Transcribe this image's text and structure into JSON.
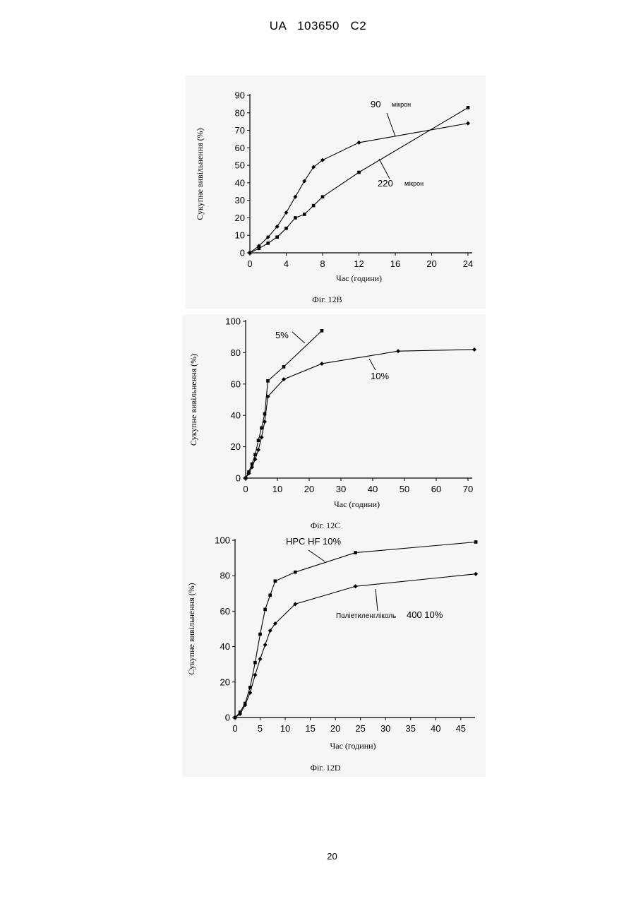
{
  "header": {
    "text": "UA   103650   C2"
  },
  "page_number": "20",
  "chart_data": [
    {
      "type": "line",
      "caption": "Фіг. 12В",
      "xlabel": "Час (години)",
      "ylabel": "Сукупне вивільнення (%)",
      "xlim": [
        0,
        24
      ],
      "ylim": [
        0,
        90
      ],
      "xticks": [
        0,
        4,
        8,
        12,
        16,
        20,
        24
      ],
      "yticks": [
        0,
        10,
        20,
        30,
        40,
        50,
        60,
        70,
        80,
        90
      ],
      "grid": false,
      "series": [
        {
          "name": "90 мікрон",
          "marker": "diamond",
          "x": [
            0,
            1,
            2,
            3,
            4,
            5,
            6,
            7,
            8,
            12,
            24
          ],
          "y": [
            0,
            4,
            9,
            15,
            23,
            32,
            41,
            49,
            53,
            63,
            74
          ]
        },
        {
          "name": "220 мікрон",
          "marker": "square",
          "x": [
            0,
            1,
            2,
            3,
            4,
            5,
            6,
            7,
            8,
            12,
            24
          ],
          "y": [
            0,
            2.5,
            5.5,
            9,
            14,
            20,
            22,
            27,
            32,
            46,
            83
          ]
        }
      ],
      "annotations": [
        {
          "label": "90",
          "unit": "мікрон",
          "series": 0
        },
        {
          "label": "220",
          "unit": "мікрон",
          "series": 1
        }
      ]
    },
    {
      "type": "line",
      "caption": "Фіг. 12С",
      "xlabel": "Час (години)",
      "ylabel": "Сукупне вивільнення (%)",
      "xlim": [
        0,
        70
      ],
      "ylim": [
        0,
        100
      ],
      "xticks": [
        0,
        10,
        20,
        30,
        40,
        50,
        60,
        70
      ],
      "yticks": [
        0,
        20,
        40,
        60,
        80,
        100
      ],
      "grid": false,
      "series": [
        {
          "name": "5%",
          "marker": "square",
          "x": [
            0,
            1,
            2,
            3,
            4,
            5,
            6,
            7,
            12,
            24
          ],
          "y": [
            0,
            4,
            9,
            15,
            24,
            32,
            41,
            62,
            71,
            94
          ]
        },
        {
          "name": "10%",
          "marker": "diamond",
          "x": [
            0,
            1,
            2,
            3,
            4,
            5,
            6,
            7,
            12,
            24,
            48,
            72
          ],
          "y": [
            0,
            3,
            7,
            12,
            18,
            26,
            36,
            52,
            63,
            73,
            81,
            82
          ]
        }
      ],
      "annotations": [
        {
          "label": "5%",
          "series": 0
        },
        {
          "label": "10%",
          "series": 1
        }
      ]
    },
    {
      "type": "line",
      "caption": "Фіг. 12D",
      "xlabel": "Час (години)",
      "ylabel": "Сукупне вивільнення (%)",
      "xlim": [
        0,
        47
      ],
      "ylim": [
        0,
        100
      ],
      "xticks": [
        0,
        5,
        10,
        15,
        20,
        25,
        30,
        35,
        40,
        45
      ],
      "yticks": [
        0,
        20,
        40,
        60,
        80,
        100
      ],
      "grid": false,
      "series": [
        {
          "name": "HPC HF 10%",
          "marker": "square",
          "x": [
            0,
            1,
            2,
            3,
            4,
            5,
            6,
            7,
            8,
            12,
            24,
            48
          ],
          "y": [
            0,
            3,
            8,
            17,
            31,
            47,
            61,
            69,
            77,
            82,
            93,
            99
          ]
        },
        {
          "name": "Поліетиленгліколь 400 10%",
          "marker": "diamond",
          "x": [
            0,
            1,
            2,
            3,
            4,
            5,
            6,
            7,
            8,
            12,
            24,
            48
          ],
          "y": [
            0,
            2,
            7,
            14,
            24,
            33,
            41,
            49,
            53,
            64,
            74,
            81
          ]
        }
      ],
      "annotations": [
        {
          "label": "HPC HF 10%",
          "series": 0
        },
        {
          "label": "Поліетиленгліколь",
          "label_suffix": "400 10%",
          "series": 1
        }
      ]
    }
  ]
}
